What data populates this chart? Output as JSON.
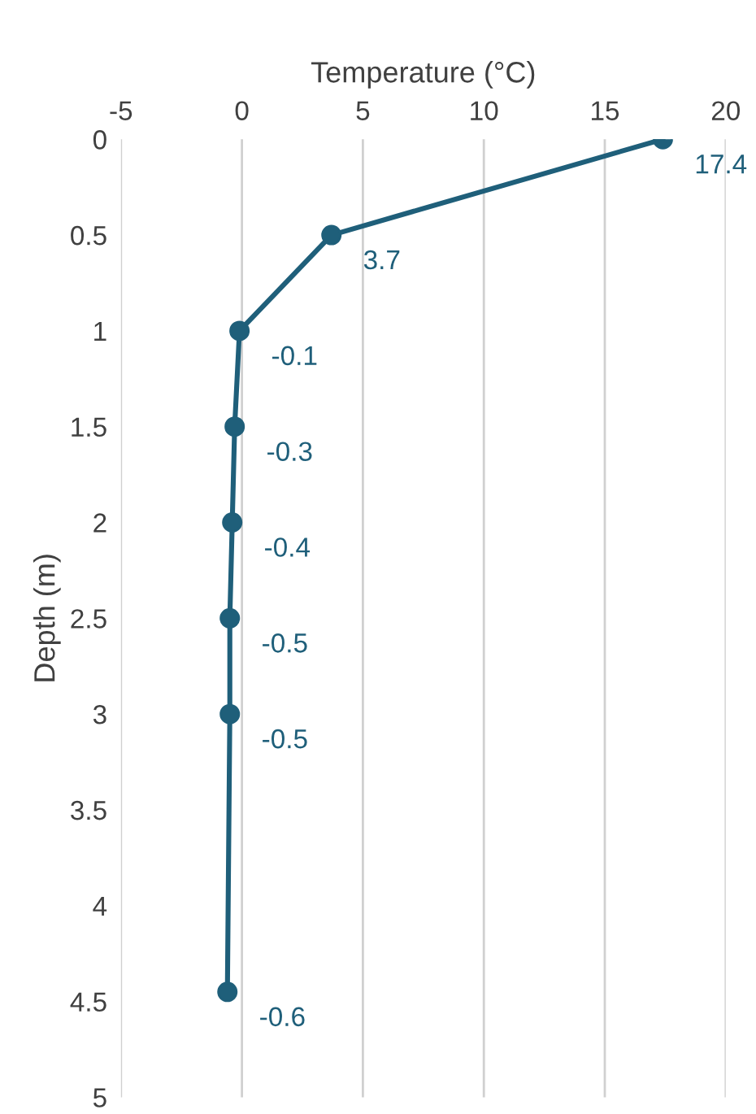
{
  "chart_data": {
    "type": "line",
    "orientation": "horizontal",
    "xlabel": "Temperature (°C)",
    "ylabel": "Depth (m)",
    "x": [
      0,
      0.5,
      1,
      1.5,
      2,
      2.5,
      3,
      4.45
    ],
    "series": [
      {
        "color": "#1f5f7a",
        "values": [
          17.4,
          3.7,
          -0.1,
          -0.3,
          -0.4,
          -0.5,
          -0.5,
          -0.6
        ]
      }
    ],
    "data_labels": true,
    "xlim": [
      -5,
      20
    ],
    "xticks": [
      -5,
      0,
      5,
      10,
      15,
      20
    ],
    "ylim": [
      5,
      0
    ],
    "yticks": [
      0,
      0.5,
      1,
      1.5,
      2,
      2.5,
      3,
      3.5,
      4,
      4.5,
      5
    ],
    "grid": "x",
    "marker": "circle",
    "line_style": "solid"
  }
}
